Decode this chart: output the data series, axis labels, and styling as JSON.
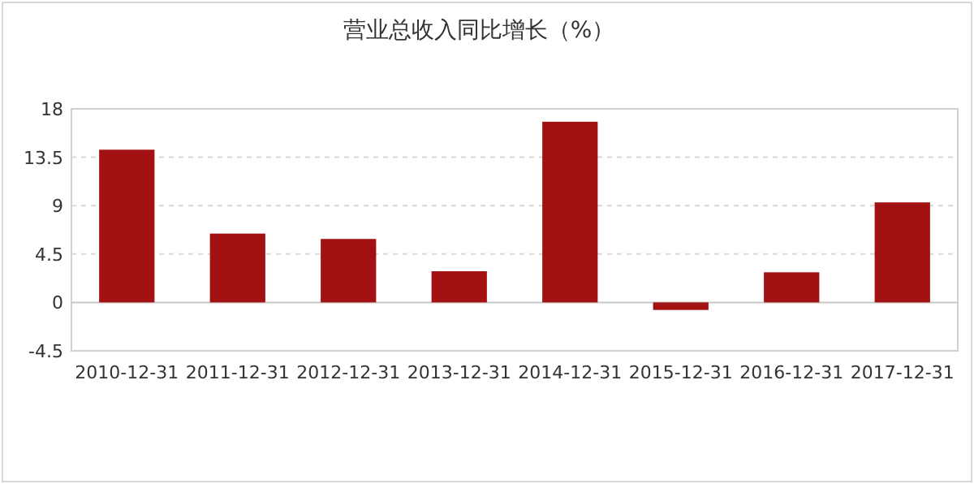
{
  "chart_data": {
    "type": "bar",
    "title": "营业总收入同比增长（%）",
    "categories": [
      "2010-12-31",
      "2011-12-31",
      "2012-12-31",
      "2013-12-31",
      "2014-12-31",
      "2015-12-31",
      "2016-12-31",
      "2017-12-31"
    ],
    "values": [
      14.2,
      6.4,
      5.9,
      2.9,
      16.8,
      -0.7,
      2.8,
      9.3
    ],
    "color": "#a31212",
    "ylim": [
      -4.5,
      18
    ],
    "yticks": [
      -4.5,
      0,
      4.5,
      9,
      13.5,
      18
    ],
    "grid": "y"
  }
}
